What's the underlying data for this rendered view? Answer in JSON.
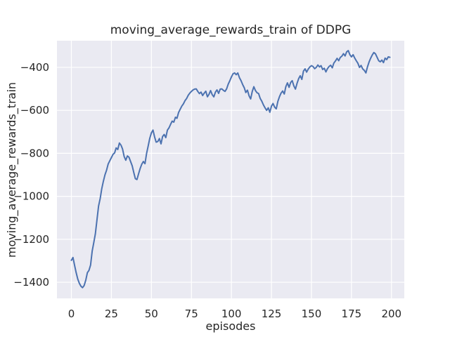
{
  "chart_data": {
    "type": "line",
    "title": "moving_average_rewards_train of DDPG",
    "xlabel": "episodes",
    "ylabel": "moving_average_rewards_train",
    "x_ticks": [
      0,
      25,
      50,
      75,
      100,
      125,
      150,
      175,
      200
    ],
    "x_tick_labels": [
      "0",
      "25",
      "50",
      "75",
      "100",
      "125",
      "150",
      "175",
      "200"
    ],
    "y_ticks": [
      -1400,
      -1200,
      -1000,
      -800,
      -600,
      -400
    ],
    "y_tick_labels": [
      "−1400",
      "−1200",
      "−1000",
      "−800",
      "−600",
      "−400"
    ],
    "xlim": [
      -9,
      208
    ],
    "ylim": [
      -1475,
      -276
    ],
    "grid": true,
    "legend": "none",
    "style": {
      "figure_background": "#ffffff",
      "plot_background": "#eaeaf2",
      "grid_color": "#ffffff",
      "line_color": "#4c72b0",
      "text_color": "#262626"
    },
    "series": [
      {
        "name": "moving_average_rewards_train",
        "x_start": 0,
        "x_step": 1,
        "values": [
          -1298,
          -1285,
          -1320,
          -1355,
          -1385,
          -1405,
          -1418,
          -1425,
          -1415,
          -1390,
          -1355,
          -1345,
          -1320,
          -1255,
          -1215,
          -1175,
          -1110,
          -1045,
          -1010,
          -965,
          -930,
          -900,
          -878,
          -850,
          -835,
          -820,
          -805,
          -798,
          -775,
          -782,
          -752,
          -762,
          -780,
          -815,
          -832,
          -812,
          -818,
          -838,
          -858,
          -890,
          -918,
          -922,
          -895,
          -870,
          -850,
          -838,
          -848,
          -800,
          -765,
          -730,
          -705,
          -692,
          -724,
          -748,
          -745,
          -731,
          -756,
          -722,
          -712,
          -727,
          -692,
          -681,
          -665,
          -650,
          -655,
          -632,
          -637,
          -610,
          -595,
          -580,
          -570,
          -555,
          -545,
          -530,
          -520,
          -512,
          -505,
          -501,
          -500,
          -512,
          -522,
          -515,
          -531,
          -520,
          -511,
          -537,
          -525,
          -508,
          -527,
          -537,
          -515,
          -505,
          -521,
          -501,
          -500,
          -507,
          -512,
          -500,
          -478,
          -462,
          -445,
          -430,
          -426,
          -434,
          -426,
          -448,
          -462,
          -480,
          -495,
          -517,
          -506,
          -532,
          -547,
          -513,
          -490,
          -508,
          -518,
          -522,
          -545,
          -558,
          -575,
          -588,
          -600,
          -588,
          -609,
          -580,
          -568,
          -585,
          -593,
          -558,
          -537,
          -520,
          -510,
          -524,
          -490,
          -472,
          -493,
          -470,
          -462,
          -486,
          -501,
          -474,
          -452,
          -439,
          -456,
          -417,
          -407,
          -422,
          -408,
          -398,
          -392,
          -396,
          -406,
          -400,
          -389,
          -398,
          -392,
          -410,
          -404,
          -421,
          -406,
          -396,
          -390,
          -402,
          -380,
          -370,
          -358,
          -369,
          -354,
          -348,
          -336,
          -347,
          -328,
          -322,
          -341,
          -351,
          -341,
          -356,
          -369,
          -381,
          -400,
          -391,
          -407,
          -414,
          -426,
          -398,
          -375,
          -357,
          -342,
          -331,
          -337,
          -353,
          -369,
          -374,
          -366,
          -378,
          -357,
          -364,
          -351,
          -353
        ]
      }
    ]
  }
}
